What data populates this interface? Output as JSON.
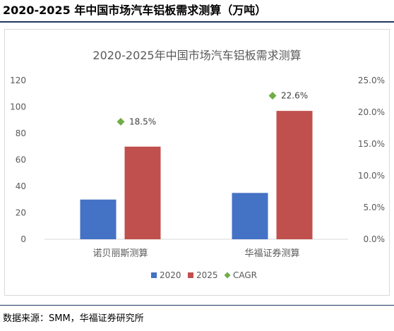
{
  "heading": "2020-2025 年中国市场汽车铝板需求测算（万吨）",
  "source": "数据来源：SMM，华福证券研究所",
  "colors": {
    "series_2020": "#4472c4",
    "series_2025": "#c0504d",
    "cagr": "#70ad47",
    "heading_rule": "#1f3864"
  },
  "chart_data": {
    "type": "bar",
    "title": "2020-2025年中国市场汽车铝板需求测算",
    "categories": [
      "诺贝丽斯测算",
      "华福证券测算"
    ],
    "series": [
      {
        "name": "2020",
        "axis": "left",
        "values": [
          30,
          35
        ]
      },
      {
        "name": "2025",
        "axis": "left",
        "values": [
          70,
          97
        ]
      },
      {
        "name": "CAGR",
        "axis": "right",
        "marker": "diamond",
        "values": [
          0.185,
          0.226
        ],
        "labels": [
          "18.5%",
          "22.6%"
        ]
      }
    ],
    "y_left": {
      "min": 0,
      "max": 120,
      "ticks": [
        "0",
        "20",
        "40",
        "60",
        "80",
        "100",
        "120"
      ]
    },
    "y_right": {
      "min": 0,
      "max": 0.25,
      "ticks": [
        "0.0%",
        "5.0%",
        "10.0%",
        "15.0%",
        "20.0%",
        "25.0%"
      ]
    },
    "grid": false,
    "legend": {
      "position": "bottom",
      "entries": [
        "2020",
        "2025",
        "CAGR"
      ]
    }
  }
}
